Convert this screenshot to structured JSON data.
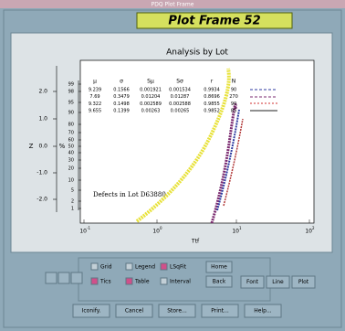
{
  "window": {
    "title": "PDQ Plot Frame",
    "frame_title": "Plot Frame 52"
  },
  "plot": {
    "title": "Analysis by Lot",
    "z_label": "Z",
    "percent_label": "%",
    "x_label": "Ttf",
    "annotation": "Defects in Lot D63880",
    "z_ticks": [
      "2.0",
      "1.0",
      "0.0",
      "-1.0",
      "-2.0"
    ],
    "percent_ticks": [
      "99",
      "98",
      "95",
      "90",
      "80",
      "70",
      "60",
      "50",
      "40",
      "30",
      "20",
      "10",
      "5",
      "2",
      "1"
    ],
    "x_ticks": [
      "10",
      "10",
      "10",
      "10"
    ],
    "x_tick_exponents": [
      "-1",
      "0",
      "1",
      "2"
    ],
    "table": {
      "headers": [
        "μ",
        "σ",
        "Sμ",
        "Sσ",
        "r",
        "N"
      ],
      "rows": [
        [
          "9.239",
          "0.1566",
          "0.001921",
          "0.001534",
          "0.9934",
          "90"
        ],
        [
          "7.69",
          "0.3479",
          "0.01204",
          "0.01287",
          "0.8696",
          "270"
        ],
        [
          "9.322",
          "0.1498",
          "0.002589",
          "0.002588",
          "0.9855",
          "90"
        ],
        [
          "9.655",
          "0.1399",
          "0.00263",
          "0.00265",
          "0.9852",
          "85"
        ]
      ]
    }
  },
  "controls": {
    "checkboxes": [
      "Grid",
      "Legend",
      "LSqFit",
      "Tics",
      "Table",
      "Interval"
    ],
    "side_buttons": [
      "Home",
      "Back"
    ],
    "plot_buttons": [
      "Font",
      "Line",
      "Plot"
    ],
    "bottom_buttons": [
      "Iconify.",
      "Cancel",
      "Store...",
      "Print...",
      "Help..."
    ]
  }
}
